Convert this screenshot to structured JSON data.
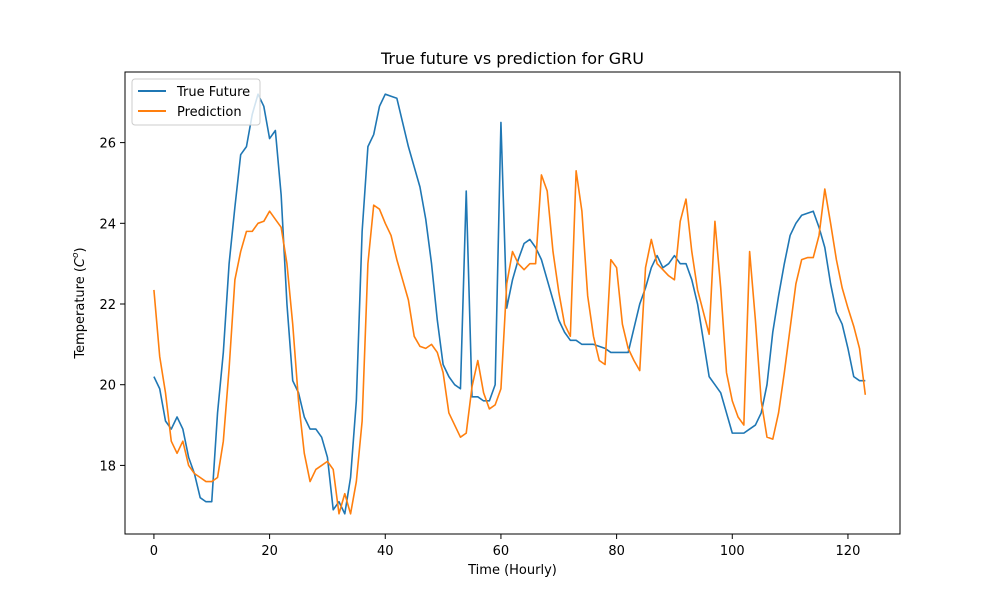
{
  "chart_data": {
    "type": "line",
    "title": "True future vs prediction for GRU",
    "xlabel": "Time (Hourly)",
    "ylabel": "Temperature (",
    "ylabel_symbol": "C",
    "ylabel_sup": "o",
    "ylabel_end": ")",
    "xlim": [
      -5,
      129
    ],
    "ylim": [
      16.3,
      27.75
    ],
    "xticks": [
      0,
      20,
      40,
      60,
      80,
      100,
      120
    ],
    "yticks": [
      18,
      20,
      22,
      24,
      26
    ],
    "legend_position": "top-left",
    "series": [
      {
        "name": "True Future",
        "color": "#1f77b4",
        "values": [
          20.2,
          19.9,
          19.1,
          18.9,
          19.2,
          18.9,
          18.2,
          17.8,
          17.2,
          17.1,
          17.1,
          19.3,
          20.8,
          23.0,
          24.4,
          25.7,
          25.9,
          26.7,
          27.2,
          26.9,
          26.1,
          26.3,
          24.7,
          22.0,
          20.1,
          19.8,
          19.2,
          18.9,
          18.9,
          18.7,
          18.2,
          16.9,
          17.1,
          16.8,
          17.7,
          19.6,
          23.8,
          25.9,
          26.2,
          26.9,
          27.2,
          27.15,
          27.1,
          26.5,
          25.9,
          25.4,
          24.9,
          24.1,
          23.0,
          21.6,
          20.5,
          20.2,
          20.0,
          19.9,
          24.8,
          19.7,
          19.7,
          19.6,
          19.6,
          20.0,
          26.5,
          21.9,
          22.6,
          23.1,
          23.5,
          23.6,
          23.4,
          23.1,
          22.6,
          22.1,
          21.6,
          21.3,
          21.1,
          21.1,
          21.0,
          21.0,
          21.0,
          20.95,
          20.9,
          20.8,
          20.8,
          20.8,
          20.8,
          21.4,
          22.0,
          22.4,
          22.9,
          23.2,
          22.9,
          23.0,
          23.2,
          23.0,
          23.0,
          22.6,
          22.0,
          21.1,
          20.2,
          20.0,
          19.8,
          19.3,
          18.8,
          18.8,
          18.8,
          18.9,
          19.0,
          19.3,
          20.0,
          21.3,
          22.2,
          23.0,
          23.7,
          24.0,
          24.2,
          24.25,
          24.3,
          23.9,
          23.4,
          22.5,
          21.8,
          21.5,
          20.9,
          20.2,
          20.1,
          20.1
        ]
      },
      {
        "name": "Prediction",
        "color": "#ff7f0e",
        "values": [
          22.35,
          20.7,
          19.8,
          18.6,
          18.3,
          18.6,
          18.0,
          17.8,
          17.7,
          17.6,
          17.6,
          17.7,
          18.6,
          20.4,
          22.6,
          23.3,
          23.8,
          23.8,
          24.0,
          24.05,
          24.3,
          24.1,
          23.9,
          23.0,
          21.5,
          19.6,
          18.3,
          17.6,
          17.9,
          18.0,
          18.1,
          17.9,
          16.8,
          17.3,
          16.8,
          17.6,
          19.1,
          23.0,
          24.45,
          24.35,
          24.0,
          23.7,
          23.1,
          22.6,
          22.1,
          21.2,
          20.95,
          20.9,
          21.0,
          20.8,
          20.3,
          19.3,
          19.0,
          18.7,
          18.8,
          19.95,
          20.6,
          19.8,
          19.4,
          19.5,
          19.9,
          22.5,
          23.3,
          23.0,
          22.85,
          23.0,
          23.0,
          25.2,
          24.8,
          23.3,
          22.3,
          21.5,
          21.2,
          25.3,
          24.3,
          22.2,
          21.2,
          20.6,
          20.5,
          23.1,
          22.9,
          21.5,
          20.9,
          20.6,
          20.35,
          22.9,
          23.6,
          23.0,
          22.85,
          22.7,
          22.6,
          24.05,
          24.6,
          23.3,
          22.35,
          21.8,
          21.25,
          24.05,
          22.4,
          20.3,
          19.6,
          19.2,
          19.0,
          23.3,
          21.6,
          19.6,
          18.7,
          18.65,
          19.3,
          20.3,
          21.4,
          22.5,
          23.1,
          23.15,
          23.15,
          23.7,
          24.85,
          24.0,
          23.1,
          22.4,
          21.9,
          21.45,
          20.9,
          19.75
        ]
      }
    ]
  }
}
